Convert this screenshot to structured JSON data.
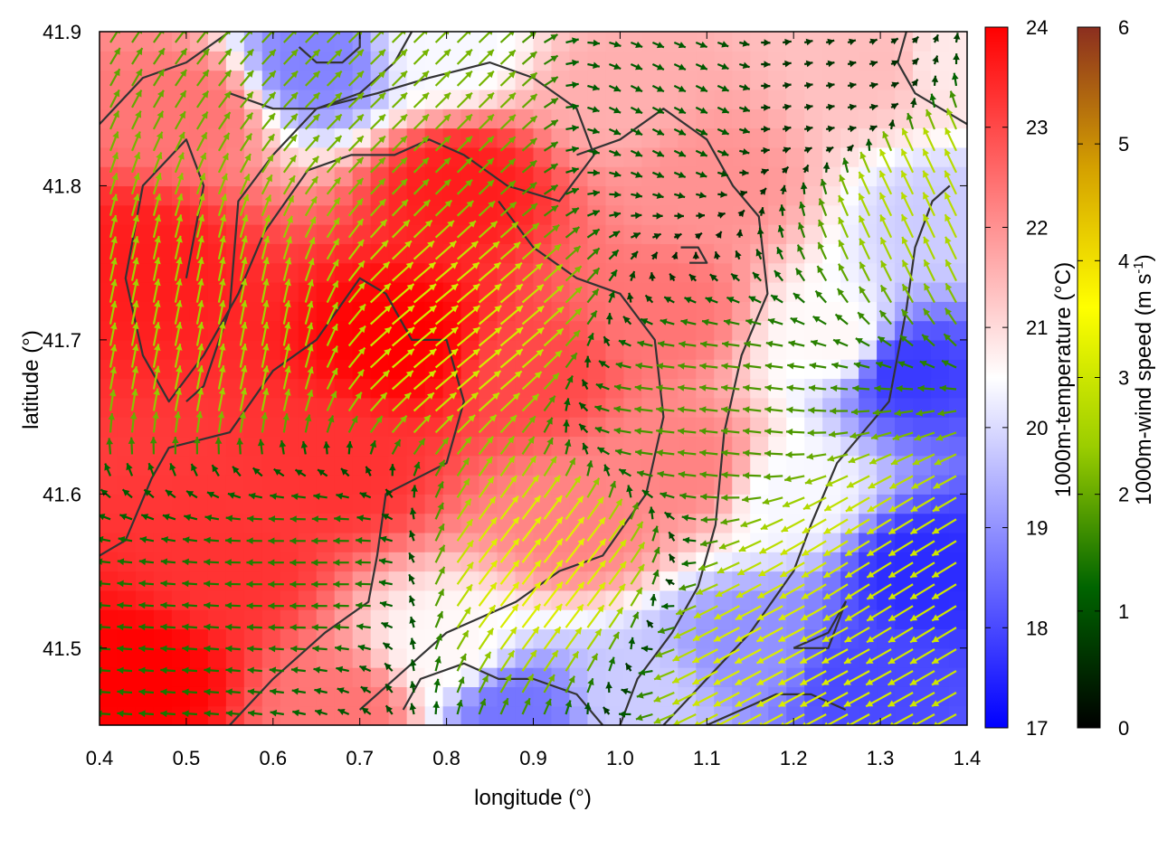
{
  "chart_data": {
    "type": "heatmap",
    "title": "",
    "xlabel": "longitude (°)",
    "ylabel": "latitude (°)",
    "xlim": [
      0.4,
      1.4
    ],
    "ylim": [
      41.45,
      41.9
    ],
    "xticks": [
      "0.4",
      "0.5",
      "0.6",
      "0.7",
      "0.8",
      "0.9",
      "1.0",
      "1.1",
      "1.2",
      "1.3",
      "1.4"
    ],
    "yticks": [
      "41.5",
      "41.6",
      "41.7",
      "41.8",
      "41.9"
    ],
    "grid": false,
    "temperature_colorbar": {
      "label": "1000m-temperature (°C)",
      "range": [
        17,
        24
      ],
      "ticks": [
        "17",
        "18",
        "19",
        "20",
        "21",
        "22",
        "23",
        "24"
      ],
      "colors": [
        "#0000ff",
        "#ffffff",
        "#ff0000"
      ]
    },
    "wind_colorbar": {
      "label_main": "1000m-wind speed (m s",
      "label_sup": "-1",
      "label_end": ")",
      "range": [
        0,
        6
      ],
      "ticks": [
        "0",
        "1",
        "2",
        "3",
        "4",
        "5",
        "6"
      ],
      "colors": [
        "#000000",
        "#006400",
        "#9acd00",
        "#ffff00",
        "#d4a000",
        "#8b2e1f"
      ]
    },
    "temperature_field_samples": [
      {
        "lon": 0.45,
        "lat": 41.48,
        "t": 24.0
      },
      {
        "lon": 0.55,
        "lat": 41.55,
        "t": 23.3
      },
      {
        "lon": 0.45,
        "lat": 41.75,
        "t": 23.6
      },
      {
        "lon": 0.5,
        "lat": 41.85,
        "t": 22.4
      },
      {
        "lon": 0.75,
        "lat": 41.7,
        "t": 24.0
      },
      {
        "lon": 0.82,
        "lat": 41.8,
        "t": 23.6
      },
      {
        "lon": 0.68,
        "lat": 41.62,
        "t": 23.3
      },
      {
        "lon": 0.9,
        "lat": 41.68,
        "t": 23.0
      },
      {
        "lon": 0.95,
        "lat": 41.58,
        "t": 22.2
      },
      {
        "lon": 0.65,
        "lat": 41.88,
        "t": 18.8
      },
      {
        "lon": 0.8,
        "lat": 41.89,
        "t": 20.4
      },
      {
        "lon": 1.0,
        "lat": 41.86,
        "t": 21.6
      },
      {
        "lon": 1.1,
        "lat": 41.8,
        "t": 22.0
      },
      {
        "lon": 1.08,
        "lat": 41.62,
        "t": 22.2
      },
      {
        "lon": 1.25,
        "lat": 41.7,
        "t": 20.6
      },
      {
        "lon": 1.3,
        "lat": 41.88,
        "t": 21.4
      },
      {
        "lon": 1.33,
        "lat": 41.68,
        "t": 17.8
      },
      {
        "lon": 1.35,
        "lat": 41.55,
        "t": 17.6
      },
      {
        "lon": 1.28,
        "lat": 41.48,
        "t": 18.0
      },
      {
        "lon": 1.15,
        "lat": 41.5,
        "t": 19.0
      },
      {
        "lon": 1.02,
        "lat": 41.47,
        "t": 19.8
      },
      {
        "lon": 0.88,
        "lat": 41.46,
        "t": 18.6
      },
      {
        "lon": 0.8,
        "lat": 41.5,
        "t": 20.6
      },
      {
        "lon": 0.68,
        "lat": 41.46,
        "t": 22.4
      },
      {
        "lon": 1.05,
        "lat": 41.72,
        "t": 22.4
      },
      {
        "lon": 1.2,
        "lat": 41.6,
        "t": 20.4
      },
      {
        "lon": 1.38,
        "lat": 41.78,
        "t": 19.8
      },
      {
        "lon": 1.38,
        "lat": 41.88,
        "t": 20.8
      }
    ],
    "wind_field_samples": [
      {
        "lon": 0.45,
        "lat": 41.5,
        "u": -1.4,
        "v": 0.1
      },
      {
        "lon": 0.55,
        "lat": 41.7,
        "u": 0.5,
        "v": 2.5
      },
      {
        "lon": 0.8,
        "lat": 41.7,
        "u": 2.4,
        "v": 2.0
      },
      {
        "lon": 0.8,
        "lat": 41.85,
        "u": 1.5,
        "v": 1.5
      },
      {
        "lon": 0.9,
        "lat": 41.55,
        "u": 2.0,
        "v": 2.6
      },
      {
        "lon": 1.1,
        "lat": 41.65,
        "u": -1.8,
        "v": 0.2
      },
      {
        "lon": 1.2,
        "lat": 41.5,
        "u": -2.8,
        "v": -1.5
      },
      {
        "lon": 1.3,
        "lat": 41.55,
        "u": -2.6,
        "v": -1.6
      },
      {
        "lon": 1.25,
        "lat": 41.85,
        "u": 0.6,
        "v": 0.1
      },
      {
        "lon": 0.65,
        "lat": 41.55,
        "u": -1.5,
        "v": 0.0
      },
      {
        "lon": 1.05,
        "lat": 41.85,
        "u": 1.0,
        "v": -0.5
      },
      {
        "lon": 1.35,
        "lat": 41.8,
        "u": -1.2,
        "v": 2.5
      }
    ],
    "contours": [
      [
        [
          0.4,
          41.56
        ],
        [
          0.43,
          41.57
        ],
        [
          0.46,
          41.61
        ],
        [
          0.48,
          41.63
        ],
        [
          0.55,
          41.64
        ],
        [
          0.6,
          41.68
        ],
        [
          0.65,
          41.7
        ],
        [
          0.7,
          41.74
        ],
        [
          0.73,
          41.73
        ],
        [
          0.76,
          41.7
        ],
        [
          0.8,
          41.7
        ],
        [
          0.82,
          41.66
        ],
        [
          0.8,
          41.62
        ],
        [
          0.73,
          41.6
        ],
        [
          0.72,
          41.56
        ],
        [
          0.71,
          41.53
        ],
        [
          0.66,
          41.51
        ],
        [
          0.6,
          41.48
        ],
        [
          0.55,
          41.45
        ]
      ],
      [
        [
          0.5,
          41.66
        ],
        [
          0.52,
          41.67
        ],
        [
          0.55,
          41.72
        ],
        [
          0.56,
          41.79
        ],
        [
          0.6,
          41.82
        ],
        [
          0.65,
          41.85
        ],
        [
          0.72,
          41.86
        ],
        [
          0.78,
          41.87
        ],
        [
          0.85,
          41.88
        ],
        [
          0.9,
          41.87
        ],
        [
          0.95,
          41.85
        ],
        [
          0.97,
          41.82
        ],
        [
          0.93,
          41.79
        ],
        [
          0.87,
          41.8
        ],
        [
          0.82,
          41.82
        ],
        [
          0.78,
          41.83
        ],
        [
          0.74,
          41.82
        ],
        [
          0.69,
          41.82
        ],
        [
          0.64,
          41.81
        ],
        [
          0.59,
          41.77
        ],
        [
          0.56,
          41.73
        ],
        [
          0.52,
          41.69
        ],
        [
          0.48,
          41.66
        ],
        [
          0.45,
          41.69
        ],
        [
          0.43,
          41.74
        ],
        [
          0.45,
          41.8
        ],
        [
          0.5,
          41.83
        ],
        [
          0.52,
          41.8
        ],
        [
          0.5,
          41.74
        ]
      ],
      [
        [
          0.4,
          41.84
        ],
        [
          0.45,
          41.87
        ],
        [
          0.5,
          41.88
        ],
        [
          0.55,
          41.9
        ]
      ],
      [
        [
          0.55,
          41.86
        ],
        [
          0.6,
          41.85
        ],
        [
          0.65,
          41.85
        ],
        [
          0.7,
          41.86
        ],
        [
          0.74,
          41.88
        ],
        [
          0.76,
          41.9
        ]
      ],
      [
        [
          0.63,
          41.89
        ],
        [
          0.65,
          41.88
        ],
        [
          0.68,
          41.88
        ],
        [
          0.7,
          41.89
        ],
        [
          0.7,
          41.9
        ]
      ],
      [
        [
          0.95,
          41.82
        ],
        [
          1.0,
          41.83
        ],
        [
          1.05,
          41.85
        ],
        [
          1.1,
          41.83
        ],
        [
          1.13,
          41.8
        ],
        [
          1.16,
          41.78
        ],
        [
          1.17,
          41.73
        ],
        [
          1.14,
          41.69
        ],
        [
          1.12,
          41.64
        ],
        [
          1.11,
          41.58
        ],
        [
          1.09,
          41.54
        ],
        [
          1.06,
          41.51
        ],
        [
          1.02,
          41.48
        ],
        [
          1.0,
          41.45
        ]
      ],
      [
        [
          0.86,
          41.79
        ],
        [
          0.9,
          41.76
        ],
        [
          0.95,
          41.74
        ],
        [
          1.0,
          41.73
        ],
        [
          1.04,
          41.7
        ],
        [
          1.05,
          41.65
        ],
        [
          1.03,
          41.6
        ],
        [
          0.98,
          41.56
        ],
        [
          0.93,
          41.55
        ],
        [
          0.88,
          41.53
        ],
        [
          0.84,
          41.52
        ],
        [
          0.8,
          41.51
        ],
        [
          0.74,
          41.48
        ],
        [
          0.7,
          41.46
        ]
      ],
      [
        [
          0.75,
          41.46
        ],
        [
          0.77,
          41.48
        ],
        [
          0.82,
          41.49
        ],
        [
          0.86,
          41.48
        ],
        [
          0.9,
          41.48
        ],
        [
          0.95,
          41.47
        ],
        [
          0.98,
          41.45
        ]
      ],
      [
        [
          1.1,
          41.45
        ],
        [
          1.14,
          41.46
        ],
        [
          1.18,
          41.47
        ],
        [
          1.22,
          41.47
        ],
        [
          1.26,
          41.46
        ]
      ],
      [
        [
          1.05,
          41.45
        ],
        [
          1.1,
          41.48
        ],
        [
          1.15,
          41.51
        ],
        [
          1.2,
          41.55
        ],
        [
          1.22,
          41.58
        ],
        [
          1.25,
          41.62
        ],
        [
          1.28,
          41.64
        ],
        [
          1.31,
          41.66
        ],
        [
          1.33,
          41.72
        ],
        [
          1.34,
          41.76
        ],
        [
          1.36,
          41.79
        ],
        [
          1.38,
          41.8
        ]
      ],
      [
        [
          1.2,
          41.5
        ],
        [
          1.24,
          41.51
        ],
        [
          1.26,
          41.53
        ],
        [
          1.24,
          41.5
        ],
        [
          1.2,
          41.5
        ]
      ],
      [
        [
          1.33,
          41.9
        ],
        [
          1.32,
          41.88
        ],
        [
          1.34,
          41.86
        ],
        [
          1.37,
          41.85
        ],
        [
          1.4,
          41.84
        ]
      ],
      [
        [
          1.07,
          41.76
        ],
        [
          1.09,
          41.76
        ],
        [
          1.1,
          41.75
        ],
        [
          1.08,
          41.75
        ]
      ]
    ]
  }
}
